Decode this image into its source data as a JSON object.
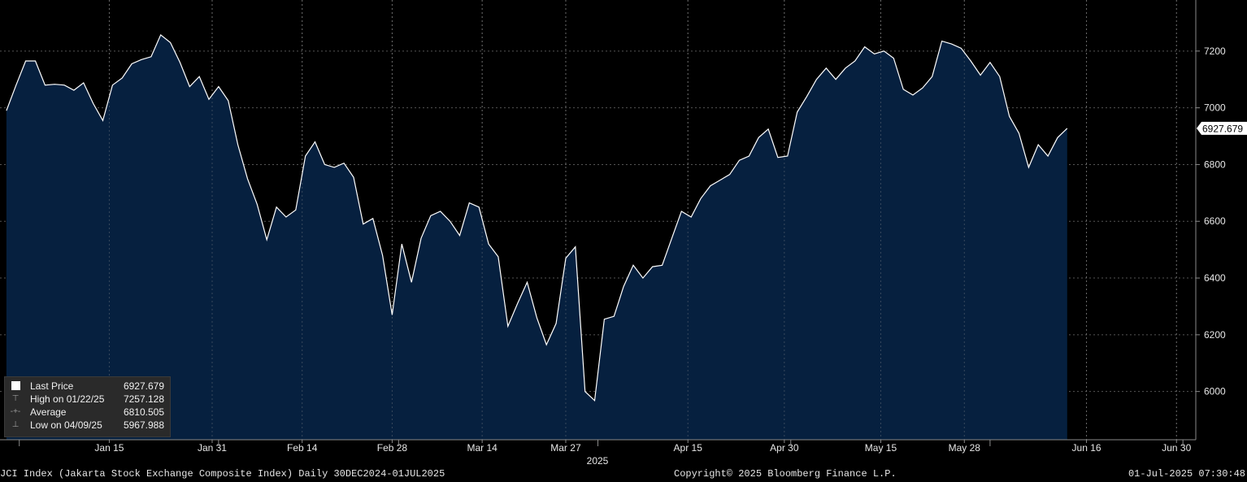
{
  "chart_data": {
    "type": "area",
    "ticker": "JCI Index",
    "x_start": "2024-12-30",
    "step_days": 1.5,
    "y": [
      6990,
      7080,
      7165,
      7165,
      7080,
      7083,
      7080,
      7062,
      7088,
      7015,
      6955,
      7080,
      7105,
      7155,
      7170,
      7180,
      7257.128,
      7230,
      7160,
      7075,
      7110,
      7030,
      7075,
      7025,
      6870,
      6750,
      6660,
      6535,
      6650,
      6615,
      6640,
      6830,
      6880,
      6800,
      6790,
      6805,
      6755,
      6590,
      6610,
      6480,
      6270,
      6520,
      6385,
      6540,
      6620,
      6635,
      6600,
      6550,
      6665,
      6650,
      6520,
      6475,
      6230,
      6310,
      6385,
      6260,
      6165,
      6240,
      6470,
      6510,
      6000,
      5967.988,
      6255,
      6265,
      6370,
      6445,
      6400,
      6440,
      6445,
      6540,
      6635,
      6615,
      6680,
      6725,
      6745,
      6765,
      6815,
      6830,
      6895,
      6925,
      6825,
      6830,
      6985,
      7040,
      7100,
      7140,
      7100,
      7140,
      7165,
      7215,
      7190,
      7200,
      7175,
      7065,
      7045,
      7070,
      7110,
      7235,
      7225,
      7210,
      7165,
      7115,
      7160,
      7110,
      6970,
      6910,
      6790,
      6870,
      6830,
      6895,
      6927.679
    ],
    "ylim": [
      5830,
      7380
    ],
    "y_ticks": [
      6000,
      6200,
      6400,
      6600,
      6800,
      7000,
      7200
    ],
    "x_tick_labels": [
      "Jan 15",
      "Jan 31",
      "Feb 14",
      "Feb 28",
      "Mar 14",
      "Mar 27",
      "Apr 15",
      "Apr 30",
      "May 15",
      "May 28",
      "Jun 16",
      "Jun 30"
    ],
    "x_tick_dates": [
      "2025-01-15",
      "2025-01-31",
      "2025-02-14",
      "2025-02-28",
      "2025-03-14",
      "2025-03-27",
      "2025-04-15",
      "2025-04-30",
      "2025-05-15",
      "2025-05-28",
      "2025-06-16",
      "2025-06-30"
    ],
    "x_year_label": "2025",
    "last_price_label": "6927.679",
    "grid": true,
    "legend_position": "bottom-left",
    "colors": {
      "background": "#000000",
      "area_fill": "#06203f",
      "line": "#ffffff",
      "grid": "#555555"
    }
  },
  "legend": {
    "rows": [
      {
        "label": "Last Price",
        "value": "6927.679"
      },
      {
        "label": "High on 01/22/25",
        "value": "7257.128"
      },
      {
        "label": "Average",
        "value": "6810.505"
      },
      {
        "label": "Low on 04/09/25",
        "value": "5967.988"
      }
    ]
  },
  "footer": {
    "left": "JCI Index (Jakarta Stock Exchange Composite Index)  Daily 30DEC2024-01JUL2025",
    "center": "Copyright© 2025 Bloomberg Finance L.P.",
    "right": "01-Jul-2025 07:30:48"
  }
}
